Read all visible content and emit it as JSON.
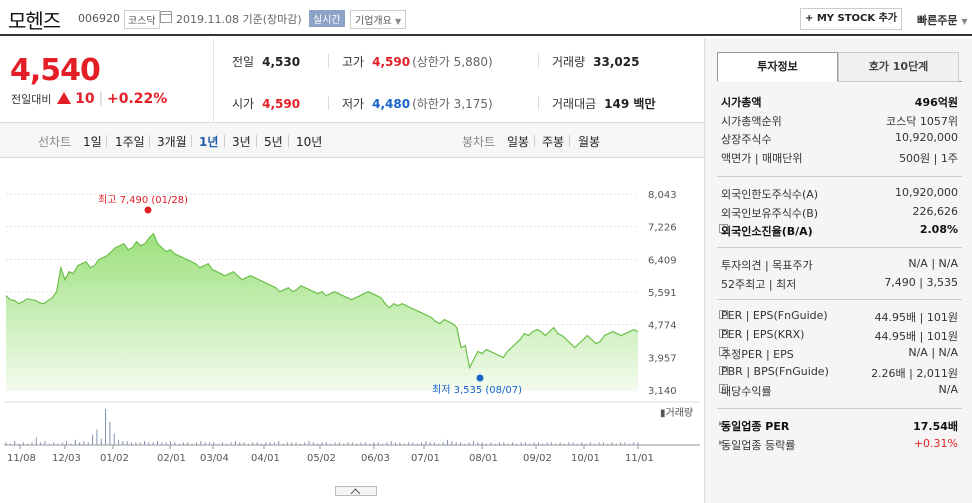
{
  "header": {
    "company_name": "모헨즈",
    "code": "006920",
    "market": "코스닥",
    "date_text": "2019.11.08 기준(장마감)",
    "realtime_label": "실시간",
    "company_overview_label": "기업개요",
    "mystock_button": "+ MY STOCK 추가",
    "quick_order": "빠른주문"
  },
  "quote": {
    "price": "4,540",
    "change_label": "전일대비",
    "change": "10",
    "change_pct": "+0.22%",
    "prev_close_label": "전일",
    "prev_close": "4,530",
    "high_label": "고가",
    "high": "4,590",
    "upper_limit": "(상한가 5,880)",
    "volume_label": "거래량",
    "volume": "33,025",
    "open_label": "시가",
    "open": "4,590",
    "low_label": "저가",
    "low": "4,480",
    "lower_limit": "(하한가 3,175)",
    "value_label": "거래대금",
    "value": "149 백만"
  },
  "toolbar": {
    "line_chart_label": "선차트",
    "periods": [
      "1일",
      "1주일",
      "3개월",
      "1년",
      "3년",
      "5년",
      "10년"
    ],
    "selected_period": "1년",
    "candle_chart_label": "봉차트",
    "candles": [
      "일봉",
      "주봉",
      "월봉"
    ]
  },
  "chart_data": {
    "type": "area",
    "title": "",
    "xlabel": "",
    "ylabel": "",
    "ylim": [
      3140,
      8043
    ],
    "y_ticks": [
      "8,043",
      "7,226",
      "6,409",
      "5,591",
      "4,774",
      "3,957",
      "3,140"
    ],
    "x_ticks": [
      "11/08",
      "12/03",
      "01/02",
      "02/01",
      "03/04",
      "04/01",
      "05/02",
      "06/03",
      "07/01",
      "08/01",
      "09/02",
      "10/01",
      "11/01"
    ],
    "high_annotation": "최고 7,490 (01/28)",
    "low_annotation": "최저 3,535 (08/07)",
    "volume_label": "거래량",
    "series": [
      {
        "values": [
          5500,
          5400,
          5380,
          5300,
          5350,
          5420,
          5400,
          5380,
          5320,
          5300,
          5380,
          5450,
          5600,
          6200,
          5900,
          6100,
          6050,
          6250,
          6300,
          6350,
          6200,
          6250,
          6400,
          6450,
          6500,
          6600,
          6700,
          6750,
          6800,
          6650,
          6700,
          6850,
          6750,
          6800,
          6950,
          7050,
          6800,
          6700,
          6600,
          6650,
          6550,
          6500,
          6450,
          6400,
          6350,
          6300,
          6200,
          6250,
          6300,
          6150,
          6100,
          6050,
          6000,
          6050,
          6100,
          6000,
          5900,
          5950,
          6000,
          5950,
          5900,
          5850,
          5800,
          5750,
          5700,
          5600,
          5650,
          5700,
          5600,
          5650,
          5750,
          5700,
          5650,
          5600,
          5550,
          5600,
          5500,
          5550,
          5600,
          5550,
          5500,
          5450,
          5400,
          5450,
          5500,
          5550,
          5600,
          5550,
          5500,
          5450,
          5300,
          5200,
          5300,
          5250,
          5300,
          5250,
          5200,
          5150,
          5100,
          5050,
          5000,
          4950,
          4850,
          4800,
          4900,
          4850,
          4800,
          4700,
          4200,
          4250,
          3700,
          3900,
          4100,
          4050,
          4150,
          4100,
          4050,
          4000,
          3950,
          4100,
          4200,
          4300,
          4400,
          4550,
          4500,
          4600,
          4650,
          4600,
          4500,
          4600,
          4700,
          4550,
          4500,
          4400,
          4300,
          4200,
          4300,
          4400,
          4500,
          4400,
          4300,
          4350,
          4500,
          4550,
          4600,
          4550,
          4500,
          4550,
          4600,
          4650,
          4600
        ]
      }
    ]
  },
  "panel": {
    "tab_invest": "투자정보",
    "tab_orderbook": "호가 10단계",
    "group1": [
      {
        "k": "시가총액",
        "v": "496억원",
        "bold": true
      },
      {
        "k": "시가총액순위",
        "v": "코스닥 1057위"
      },
      {
        "k": "상장주식수",
        "v": "10,920,000"
      },
      {
        "k": "액면가 | 매매단위",
        "v": "500원 | 1주"
      }
    ],
    "group2": [
      {
        "k": "외국인한도주식수(A)",
        "v": "10,920,000"
      },
      {
        "k": "외국인보유주식수(B)",
        "v": "226,626"
      },
      {
        "k": "외국인소진율(B/A)",
        "v": "2.08%",
        "bold": true,
        "q": true
      }
    ],
    "group3": [
      {
        "k": "투자의견 | 목표주가",
        "v": "N/A | N/A"
      },
      {
        "k": "52주최고 | 최저",
        "v": "7,490 | 3,535"
      }
    ],
    "group4": [
      {
        "k": "PER | EPS(FnGuide)",
        "v": "44.95배 | 101원",
        "q": true
      },
      {
        "k": "PER | EPS(KRX)",
        "v": "44.95배 | 101원",
        "q": true
      },
      {
        "k": "추정PER | EPS",
        "v": "N/A | N/A",
        "q": true
      },
      {
        "k": "PBR | BPS(FnGuide)",
        "v": "2.26배 | 2,011원",
        "q": true
      },
      {
        "k": "배당수익률",
        "v": "N/A",
        "q": true
      }
    ],
    "group5": [
      {
        "k": "동일업종 PER",
        "v": "17.54배",
        "bold": true,
        "caret": true
      },
      {
        "k": "동일업종 등락률",
        "v": "+0.31%",
        "red": true,
        "caret": true
      }
    ]
  }
}
